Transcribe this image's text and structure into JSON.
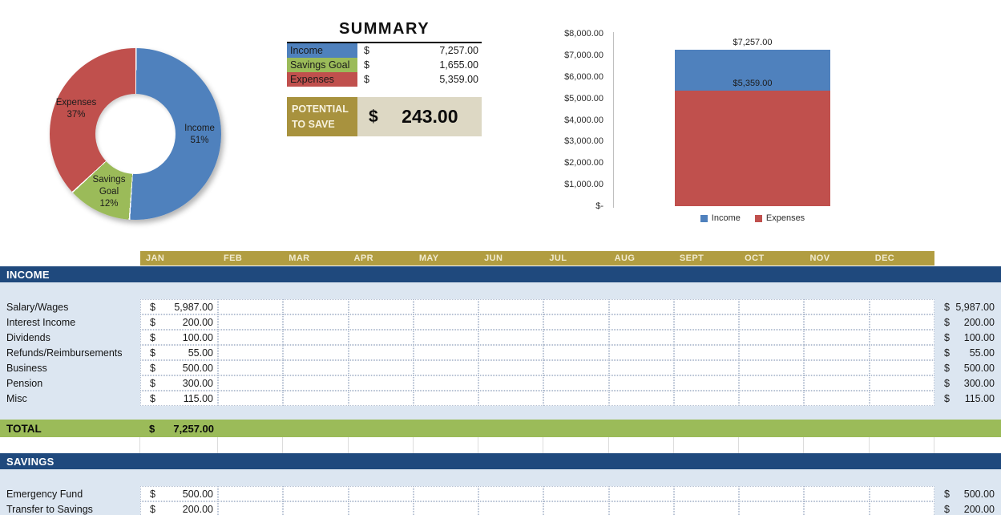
{
  "summary": {
    "title": "SUMMARY",
    "rows": [
      {
        "label": "Income",
        "currency": "$",
        "value": "7,257.00",
        "swatch": "#4F81BD"
      },
      {
        "label": "Savings Goal",
        "currency": "$",
        "value": "1,655.00",
        "swatch": "#9BBB59"
      },
      {
        "label": "Expenses",
        "currency": "$",
        "value": "5,359.00",
        "swatch": "#C0504D"
      }
    ],
    "potential_label_lines": [
      "POTENTIAL",
      "TO SAVE"
    ],
    "potential_currency": "$",
    "potential_value": "243.00"
  },
  "chart_data": [
    {
      "type": "pie",
      "subtype": "donut",
      "labels": [
        "Income",
        "Savings Goal",
        "Expenses"
      ],
      "values": [
        51,
        12,
        37
      ],
      "unit": "percent",
      "colors": [
        "#4F81BD",
        "#9BBB59",
        "#C0504D"
      ],
      "slice_label_text": [
        "Income\n51%",
        "Savings\nGoal\n12%",
        "Expenses\n37%"
      ],
      "start_angle_deg": 0,
      "direction": "clockwise",
      "legend_position": "none"
    },
    {
      "type": "bar",
      "subtype": "stacked-column",
      "categories": [
        ""
      ],
      "series": [
        {
          "name": "Income",
          "values": [
            7257
          ],
          "color": "#4F81BD",
          "data_label": "$7,257.00"
        },
        {
          "name": "Expenses",
          "values": [
            5359
          ],
          "color": "#C0504D",
          "data_label": "$5,359.00"
        }
      ],
      "ylim": [
        0,
        8000
      ],
      "ytick_labels": [
        "$8,000.00",
        "$7,000.00",
        "$6,000.00",
        "$5,000.00",
        "$4,000.00",
        "$3,000.00",
        "$2,000.00",
        "$1,000.00",
        "$-"
      ],
      "grid": false,
      "legend_position": "bottom"
    }
  ],
  "months": [
    "JAN",
    "FEB",
    "MAR",
    "APR",
    "MAY",
    "JUN",
    "JUL",
    "AUG",
    "SEPT",
    "OCT",
    "NOV",
    "DEC"
  ],
  "income": {
    "header": "INCOME",
    "currency": "$",
    "rows": [
      {
        "label": "Salary/Wages",
        "jan": "5,987.00",
        "annual": "5,987.00"
      },
      {
        "label": "Interest Income",
        "jan": "200.00",
        "annual": "200.00"
      },
      {
        "label": "Dividends",
        "jan": "100.00",
        "annual": "100.00"
      },
      {
        "label": "Refunds/Reimbursements",
        "jan": "55.00",
        "annual": "55.00"
      },
      {
        "label": "Business",
        "jan": "500.00",
        "annual": "500.00"
      },
      {
        "label": "Pension",
        "jan": "300.00",
        "annual": "300.00"
      },
      {
        "label": "Misc",
        "jan": "115.00",
        "annual": "115.00"
      }
    ],
    "total": {
      "label": "TOTAL",
      "currency": "$",
      "value": "7,257.00"
    }
  },
  "savings": {
    "header": "SAVINGS",
    "currency": "$",
    "rows": [
      {
        "label": "Emergency Fund",
        "jan": "500.00",
        "annual": "500.00"
      },
      {
        "label": "Transfer to Savings",
        "jan": "200.00",
        "annual": "200.00"
      }
    ]
  },
  "colors": {
    "accent_blue": "#4F81BD",
    "accent_green": "#9BBB59",
    "accent_red": "#C0504D",
    "band_blue": "#1F497D",
    "band_gold": "#B19D41",
    "gold_label": "#A8923E",
    "tan": "#DDD8C4",
    "section_bg": "#DCE6F1",
    "month_text": "#F1EBD0"
  }
}
